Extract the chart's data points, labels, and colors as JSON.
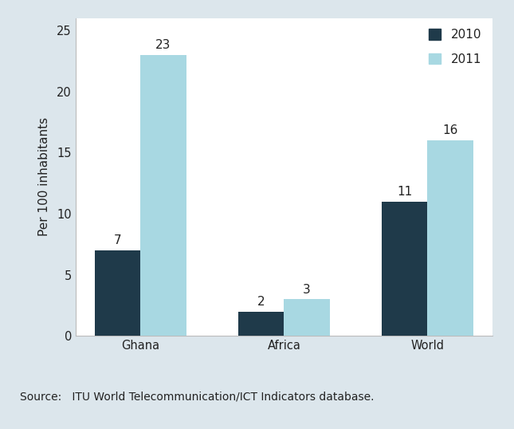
{
  "categories": [
    "Ghana",
    "Africa",
    "World"
  ],
  "values_2010": [
    7,
    2,
    11
  ],
  "values_2011": [
    23,
    3,
    16
  ],
  "color_2010": "#1f3a4a",
  "color_2011": "#a8d8e2",
  "ylabel": "Per 100 inhabitants",
  "ylim": [
    0,
    26
  ],
  "yticks": [
    0,
    5,
    10,
    15,
    20,
    25
  ],
  "legend_labels": [
    "2010",
    "2011"
  ],
  "bar_width": 0.32,
  "source_text": "Source:   ITU World Telecommunication/ICT Indicators database.",
  "background_color": "#dce6ec",
  "plot_background": "#ffffff",
  "footer_background": "#c5d2da",
  "annotation_fontsize": 11,
  "axis_label_fontsize": 11,
  "tick_fontsize": 10.5,
  "legend_fontsize": 11
}
